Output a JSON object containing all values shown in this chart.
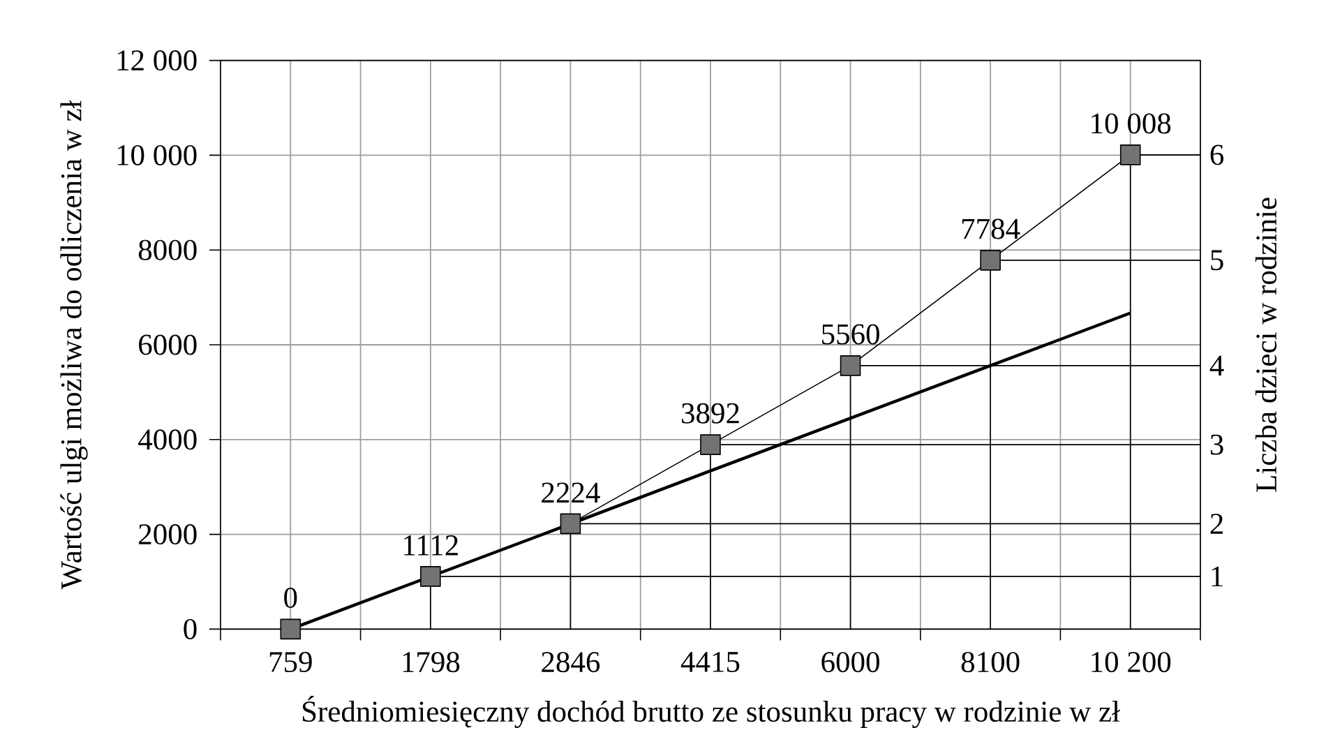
{
  "chart_data": {
    "type": "line",
    "xlabel": "Średniomiesięczny dochód brutto ze stosunku pracy w rodzinie w zł",
    "ylabel": "Wartość ulgi możliwa do odliczenia w zł",
    "y2label": "Liczba dzieci w rodzinie",
    "categories": [
      "759",
      "1798",
      "2846",
      "4415",
      "6000",
      "8100",
      "10 200"
    ],
    "series": [
      {
        "color": "#000000",
        "marker": "square",
        "values": [
          0,
          1112,
          2224,
          3892,
          5560,
          7784,
          10008
        ],
        "value_labels": [
          "0",
          "1112",
          "2224",
          "3892",
          "5560",
          "7784",
          "10 008"
        ]
      },
      {
        "color": "#000000",
        "marker": "none",
        "values": [
          0,
          1110,
          2220,
          3340,
          4450,
          5560,
          6670
        ]
      }
    ],
    "ylim": [
      0,
      12000
    ],
    "yticks": [
      0,
      2000,
      4000,
      6000,
      8000,
      {
        "value": 10000,
        "label": "10 000"
      },
      {
        "value": 12000,
        "label": "12 000"
      }
    ],
    "annotations": [
      {
        "text": "1",
        "x": "1798",
        "y": 1112
      },
      {
        "text": "2",
        "x": "2846",
        "y": 2224
      },
      {
        "text": "3",
        "x": "4415",
        "y": 3892
      },
      {
        "text": "4",
        "x": "6000",
        "y": 5560
      },
      {
        "text": "5",
        "x": "8100",
        "y": 7784
      },
      {
        "text": "6",
        "x": "10 200",
        "y": 10008
      }
    ],
    "grid": true
  }
}
